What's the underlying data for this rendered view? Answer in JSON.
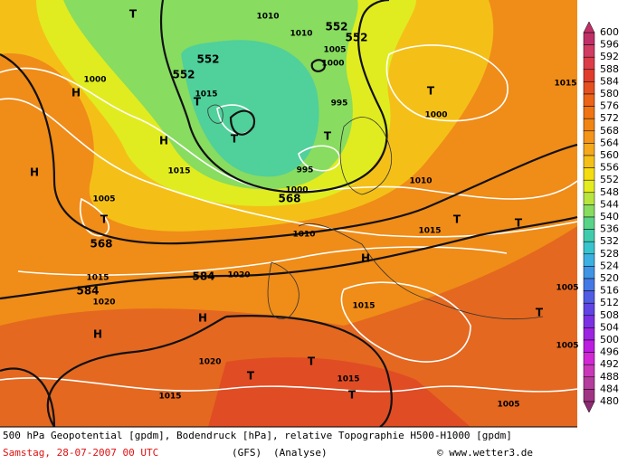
{
  "legend": {
    "levels": [
      600,
      596,
      592,
      588,
      584,
      580,
      576,
      572,
      568,
      564,
      560,
      556,
      552,
      548,
      544,
      540,
      536,
      532,
      528,
      524,
      520,
      516,
      512,
      508,
      504,
      500,
      496,
      492,
      488,
      484,
      480
    ],
    "colors": [
      "#c03068",
      "#d03c62",
      "#dc3c48",
      "#e03c2c",
      "#e45020",
      "#ec6418",
      "#f07414",
      "#f08414",
      "#f49418",
      "#f4a81c",
      "#f4c018",
      "#f4dc10",
      "#e4ec20",
      "#b8e440",
      "#88dc60",
      "#58d488",
      "#40ccac",
      "#38c4cc",
      "#3cb0e0",
      "#4094e4",
      "#4478e4",
      "#505ce4",
      "#6044e4",
      "#7c30e4",
      "#9c24e0",
      "#bc1ce0",
      "#d028d4",
      "#c838b8",
      "#b43c9c",
      "#a03484",
      "#8c2c70"
    ]
  },
  "map_labels": [
    "552",
    "552",
    "552",
    "552",
    "568",
    "568",
    "584",
    "584",
    "1010",
    "1010",
    "1000",
    "1015",
    "1015",
    "1005",
    "1000",
    "995",
    "995",
    "1000",
    "1010",
    "1005",
    "1015",
    "1015",
    "1020",
    "1020",
    "1015",
    "1020",
    "1015",
    "1015",
    "1005",
    "1005",
    "1005",
    "1000",
    "1010",
    "1015",
    "H",
    "H",
    "H",
    "H",
    "H",
    "H",
    "T",
    "T",
    "T",
    "T",
    "T",
    "T",
    "T",
    "T",
    "T",
    "T",
    "T",
    "T"
  ],
  "caption": {
    "line1": "500 hPa Geopotential [gpdm], Bodendruck [hPa], relative Topographie H500-H1000 [gpdm]",
    "date": "Samstag, 28-07-2007  00 UTC",
    "model": "(GFS)",
    "run": "(Analyse)",
    "credit": "© www.wetter3.de"
  }
}
